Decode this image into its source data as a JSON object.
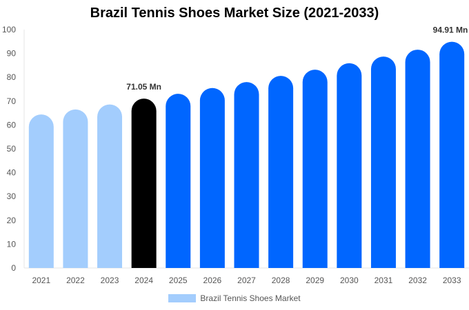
{
  "chart_data": {
    "type": "bar",
    "title": "Brazil Tennis Shoes Market Size (2021-2033)",
    "categories": [
      "2021",
      "2022",
      "2023",
      "2024",
      "2025",
      "2026",
      "2027",
      "2028",
      "2029",
      "2030",
      "2031",
      "2032",
      "2033"
    ],
    "values": [
      64.4,
      66.5,
      68.6,
      71.05,
      73.1,
      75.5,
      78.0,
      80.6,
      83.2,
      85.9,
      88.7,
      91.6,
      94.91
    ],
    "bar_colors": [
      "#a3cdfd",
      "#a3cdfd",
      "#a3cdfd",
      "#000000",
      "#0066ff",
      "#0066ff",
      "#0066ff",
      "#0066ff",
      "#0066ff",
      "#0066ff",
      "#0066ff",
      "#0066ff",
      "#0066ff"
    ],
    "data_labels": {
      "2024": "71.05 Mn",
      "2033": "94.91 Mn"
    },
    "ylim": [
      0,
      100
    ],
    "yticks": [
      0,
      10,
      20,
      30,
      40,
      50,
      60,
      70,
      80,
      90,
      100
    ],
    "xlabel": "",
    "ylabel": "",
    "grid": false,
    "legend": {
      "position": "bottom",
      "entries": [
        {
          "name": "Brazil Tennis Shoes Market",
          "color": "#a3cdfd"
        }
      ]
    }
  }
}
